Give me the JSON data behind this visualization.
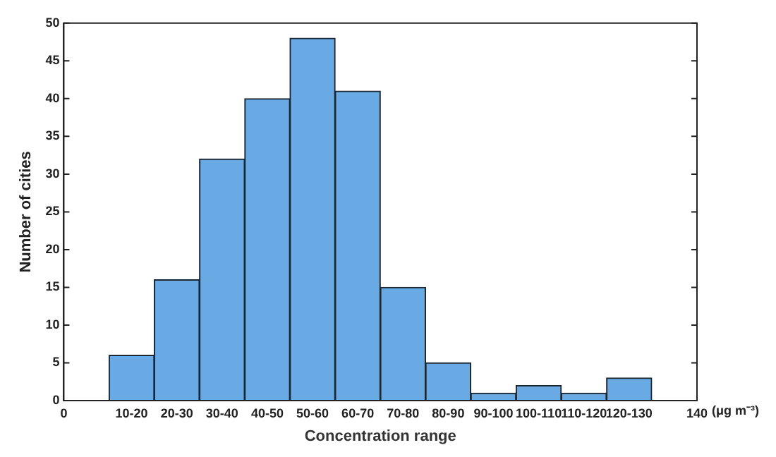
{
  "chart_data": {
    "type": "histogram",
    "xlabel": "Concentration range",
    "ylabel": "Number of cities",
    "bins": [
      10,
      20,
      30,
      40,
      50,
      60,
      70,
      80,
      90,
      100,
      110,
      120,
      130
    ],
    "values": [
      6,
      16,
      32,
      40,
      48,
      41,
      15,
      5,
      1,
      2,
      1,
      3
    ],
    "color": "#6aaae4",
    "xlim": [
      0,
      140
    ],
    "xticks": [
      0,
      {
        "value": 15,
        "label": "10-20"
      },
      {
        "value": 25,
        "label": "20-30"
      },
      {
        "value": 35,
        "label": "30-40"
      },
      {
        "value": 45,
        "label": "40-50"
      },
      {
        "value": 55,
        "label": "50-60"
      },
      {
        "value": 65,
        "label": "60-70"
      },
      {
        "value": 75,
        "label": "70-80"
      },
      {
        "value": 85,
        "label": "80-90"
      },
      {
        "value": 95,
        "label": "90-100"
      },
      {
        "value": 105,
        "label": "100-110"
      },
      {
        "value": 115,
        "label": "110-120"
      },
      {
        "value": 125,
        "label": "120-130"
      },
      140
    ],
    "annotations": [
      "(μg m⁻³)"
    ],
    "ylim": [
      0,
      50
    ],
    "yticks": [
      0,
      5,
      10,
      15,
      20,
      25,
      30,
      35,
      40,
      45,
      50
    ],
    "grid": false,
    "legend": false
  }
}
